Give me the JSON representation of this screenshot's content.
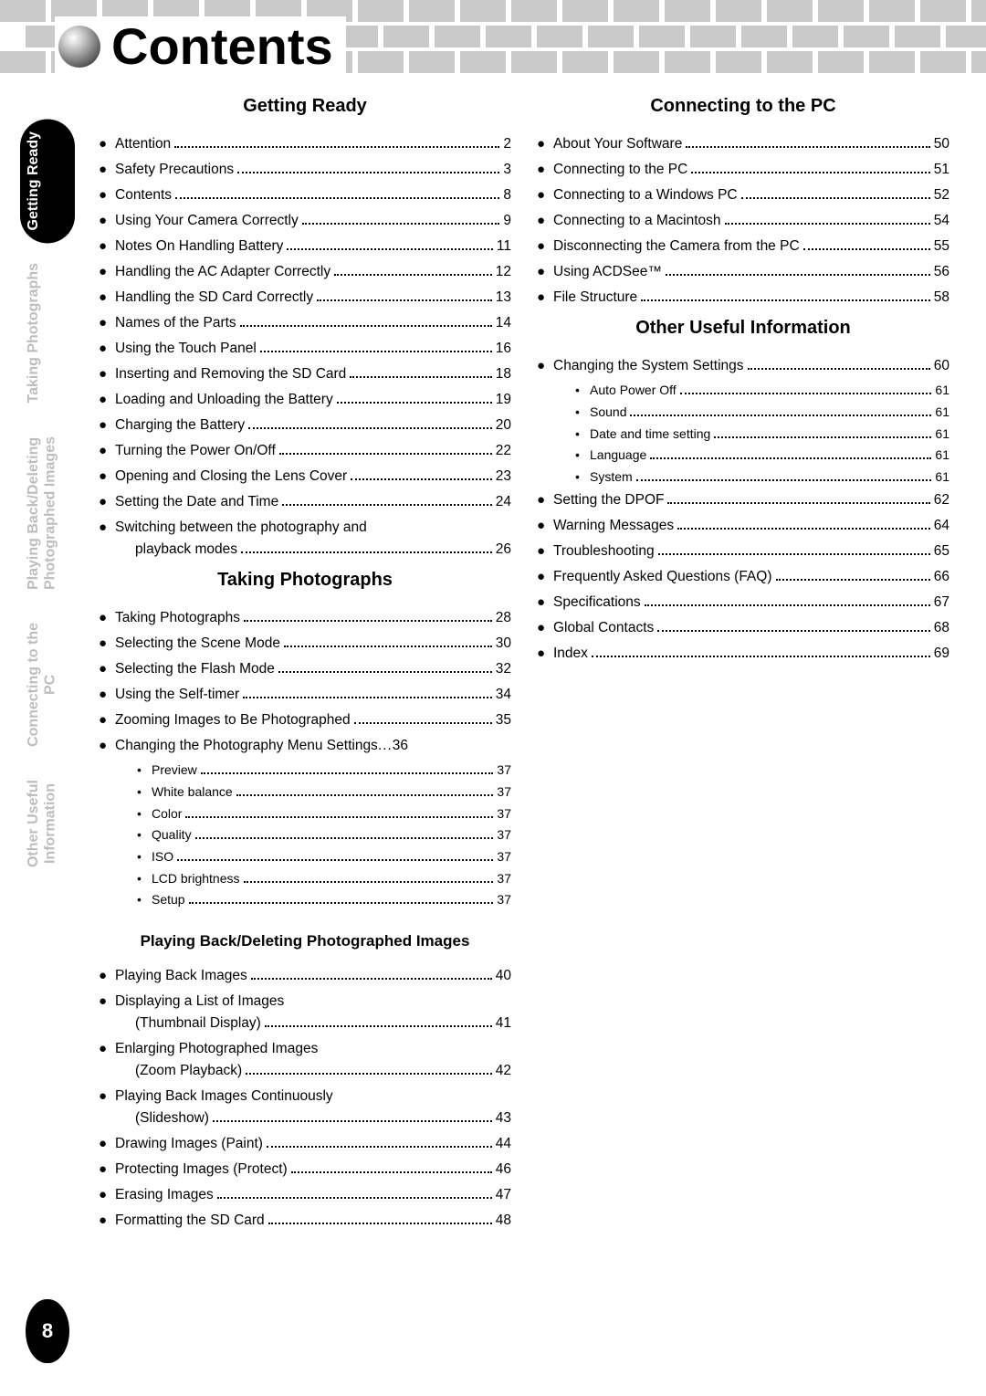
{
  "page_title": "Contents",
  "page_number": "8",
  "side_tabs": [
    {
      "label": "Getting Ready",
      "active": true
    },
    {
      "label": "Taking Photographs",
      "active": false
    },
    {
      "label": "Playing Back/Deleting\nPhotographed Images",
      "active": false
    },
    {
      "label": "Connecting to the\nPC",
      "active": false
    },
    {
      "label": "Other Useful\nInformation",
      "active": false
    }
  ],
  "left_column": [
    {
      "heading": "Getting Ready",
      "items": [
        {
          "label": "Attention",
          "page": "2"
        },
        {
          "label": "Safety Precautions",
          "page": "3"
        },
        {
          "label": "Contents",
          "page": "8"
        },
        {
          "label": "Using Your Camera Correctly",
          "page": "9"
        },
        {
          "label": "Notes On Handling Battery",
          "page": "11"
        },
        {
          "label": "Handling the AC Adapter Correctly",
          "page": "12"
        },
        {
          "label": "Handling the SD Card Correctly",
          "page": "13"
        },
        {
          "label": "Names of the Parts",
          "page": "14"
        },
        {
          "label": "Using the Touch Panel",
          "page": "16"
        },
        {
          "label": "Inserting and Removing the SD Card",
          "page": "18"
        },
        {
          "label": "Loading and Unloading the Battery",
          "page": "19"
        },
        {
          "label": "Charging the Battery",
          "page": "20"
        },
        {
          "label": "Turning the Power On/Off",
          "page": "22"
        },
        {
          "label": "Opening and Closing the Lens Cover",
          "page": "23"
        },
        {
          "label": "Setting the Date and Time",
          "page": "24"
        },
        {
          "label": "Switching between the photography and",
          "label2": "playback modes",
          "page": "26",
          "multiline": true
        }
      ]
    },
    {
      "heading": "Taking Photographs",
      "items": [
        {
          "label": "Taking Photographs",
          "page": "28"
        },
        {
          "label": "Selecting the Scene Mode",
          "page": "30"
        },
        {
          "label": "Selecting the Flash Mode",
          "page": "32"
        },
        {
          "label": "Using the Self-timer",
          "page": "34"
        },
        {
          "label": "Zooming Images to Be Photographed",
          "page": "35"
        },
        {
          "label": "Changing the Photography Menu Settings",
          "page": "36",
          "tight": true,
          "sub": [
            {
              "label": "Preview",
              "page": "37"
            },
            {
              "label": "White balance",
              "page": "37"
            },
            {
              "label": "Color",
              "page": "37"
            },
            {
              "label": "Quality",
              "page": "37"
            },
            {
              "label": "ISO",
              "page": "37"
            },
            {
              "label": "LCD brightness",
              "page": "37"
            },
            {
              "label": "Setup",
              "page": "37"
            }
          ]
        }
      ]
    },
    {
      "heading_sub": "Playing Back/Deleting Photographed Images",
      "items": [
        {
          "label": "Playing Back Images",
          "page": "40"
        },
        {
          "label": "Displaying a List of Images",
          "label2": "(Thumbnail Display)",
          "page": "41",
          "multiline": true
        },
        {
          "label": "Enlarging Photographed Images",
          "label2": "(Zoom Playback)",
          "page": "42",
          "multiline": true
        },
        {
          "label": "Playing Back Images Continuously",
          "label2": "(Slideshow)",
          "page": "43",
          "multiline": true
        },
        {
          "label": "Drawing Images (Paint)",
          "page": "44"
        },
        {
          "label": "Protecting Images (Protect)",
          "page": "46"
        },
        {
          "label": "Erasing Images",
          "page": "47"
        },
        {
          "label": "Formatting the SD Card",
          "page": "48"
        }
      ]
    }
  ],
  "right_column": [
    {
      "heading": "Connecting to the PC",
      "items": [
        {
          "label": "About Your Software",
          "page": "50"
        },
        {
          "label": "Connecting to the PC",
          "page": "51"
        },
        {
          "label": "Connecting to a Windows PC",
          "page": "52"
        },
        {
          "label": "Connecting to a Macintosh",
          "page": "54"
        },
        {
          "label": "Disconnecting the Camera from the PC",
          "page": "55"
        },
        {
          "label": "Using ACDSee™",
          "page": "56"
        },
        {
          "label": "File Structure",
          "page": "58"
        }
      ]
    },
    {
      "heading": "Other Useful Information",
      "items": [
        {
          "label": "Changing the System Settings",
          "page": "60",
          "sub": [
            {
              "label": "Auto Power Off",
              "page": "61"
            },
            {
              "label": "Sound",
              "page": "61"
            },
            {
              "label": "Date and time setting",
              "page": "61"
            },
            {
              "label": "Language",
              "page": "61"
            },
            {
              "label": "System",
              "page": "61"
            }
          ]
        },
        {
          "label": "Setting the DPOF",
          "page": "62"
        },
        {
          "label": "Warning Messages",
          "page": "64"
        },
        {
          "label": "Troubleshooting",
          "page": "65"
        },
        {
          "label": "Frequently Asked Questions (FAQ)",
          "page": "66"
        },
        {
          "label": "Specifications",
          "page": "67"
        },
        {
          "label": "Global Contacts",
          "page": "68"
        },
        {
          "label": "Index",
          "page": "69"
        }
      ]
    }
  ]
}
